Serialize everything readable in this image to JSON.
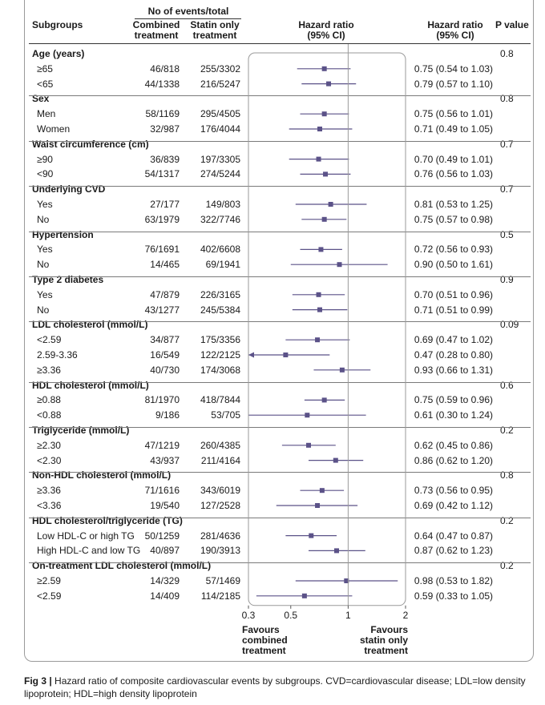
{
  "header": {
    "events_group": "No of events/total",
    "col_subgroups": "Subgroups",
    "col_combined": [
      "Combined",
      "treatment"
    ],
    "col_statin": [
      "Statin only",
      "treatment"
    ],
    "col_hr_plot": [
      "Hazard ratio",
      "(95% CI)"
    ],
    "col_hr_text": [
      "Hazard ratio",
      "(95% CI)"
    ],
    "col_p": "P value"
  },
  "chart_data": {
    "type": "forest",
    "x_scale": "log",
    "xlim": [
      0.3,
      2
    ],
    "x_ticks": [
      "0.3",
      "0.5",
      "1",
      "2"
    ],
    "x_tick_values": [
      0.3,
      0.5,
      1,
      2
    ],
    "reference_line": 1,
    "favours_left": [
      "Favours",
      "combined",
      "treatment"
    ],
    "favours_right": [
      "Favours",
      "statin only",
      "treatment"
    ],
    "groups": [
      {
        "title": "Age (years)",
        "p": "0.8",
        "rows": [
          {
            "label": "≥65",
            "combined": "46/818",
            "statin": "255/3302",
            "hr": 0.75,
            "lo": 0.54,
            "hi": 1.03,
            "text": "0.75 (0.54 to 1.03)"
          },
          {
            "label": "<65",
            "combined": "44/1338",
            "statin": "216/5247",
            "hr": 0.79,
            "lo": 0.57,
            "hi": 1.1,
            "text": "0.79 (0.57 to 1.10)"
          }
        ]
      },
      {
        "title": "Sex",
        "p": "0.8",
        "rows": [
          {
            "label": "Men",
            "combined": "58/1169",
            "statin": "295/4505",
            "hr": 0.75,
            "lo": 0.56,
            "hi": 1.01,
            "text": "0.75 (0.56 to 1.01)"
          },
          {
            "label": "Women",
            "combined": "32/987",
            "statin": "176/4044",
            "hr": 0.71,
            "lo": 0.49,
            "hi": 1.05,
            "text": "0.71 (0.49 to 1.05)"
          }
        ]
      },
      {
        "title": "Waist circumference (cm)",
        "p": "0.7",
        "rows": [
          {
            "label": "≥90",
            "combined": "36/839",
            "statin": "197/3305",
            "hr": 0.7,
            "lo": 0.49,
            "hi": 1.01,
            "text": "0.70 (0.49 to 1.01)"
          },
          {
            "label": "<90",
            "combined": "54/1317",
            "statin": "274/5244",
            "hr": 0.76,
            "lo": 0.56,
            "hi": 1.03,
            "text": "0.76 (0.56 to 1.03)"
          }
        ]
      },
      {
        "title": "Underlying CVD",
        "p": "0.7",
        "rows": [
          {
            "label": "Yes",
            "combined": "27/177",
            "statin": "149/803",
            "hr": 0.81,
            "lo": 0.53,
            "hi": 1.25,
            "text": "0.81 (0.53 to 1.25)"
          },
          {
            "label": "No",
            "combined": "63/1979",
            "statin": "322/7746",
            "hr": 0.75,
            "lo": 0.57,
            "hi": 0.98,
            "text": "0.75 (0.57 to 0.98)"
          }
        ]
      },
      {
        "title": "Hypertension",
        "p": "0.5",
        "rows": [
          {
            "label": "Yes",
            "combined": "76/1691",
            "statin": "402/6608",
            "hr": 0.72,
            "lo": 0.56,
            "hi": 0.93,
            "text": "0.72 (0.56 to 0.93)"
          },
          {
            "label": "No",
            "combined": "14/465",
            "statin": "69/1941",
            "hr": 0.9,
            "lo": 0.5,
            "hi": 1.61,
            "text": "0.90 (0.50 to 1.61)"
          }
        ]
      },
      {
        "title": "Type 2 diabetes",
        "p": "0.9",
        "rows": [
          {
            "label": "Yes",
            "combined": "47/879",
            "statin": "226/3165",
            "hr": 0.7,
            "lo": 0.51,
            "hi": 0.96,
            "text": "0.70 (0.51 to 0.96)"
          },
          {
            "label": "No",
            "combined": "43/1277",
            "statin": "245/5384",
            "hr": 0.71,
            "lo": 0.51,
            "hi": 0.99,
            "text": "0.71 (0.51 to 0.99)"
          }
        ]
      },
      {
        "title": "LDL cholesterol (mmol/L)",
        "p": "0.09",
        "rows": [
          {
            "label": "<2.59",
            "combined": "34/877",
            "statin": "175/3356",
            "hr": 0.69,
            "lo": 0.47,
            "hi": 1.02,
            "text": "0.69 (0.47 to 1.02)"
          },
          {
            "label": "2.59-3.36",
            "combined": "16/549",
            "statin": "122/2125",
            "hr": 0.47,
            "lo": 0.28,
            "hi": 0.8,
            "text": "0.47 (0.28 to 0.80)"
          },
          {
            "label": "≥3.36",
            "combined": "40/730",
            "statin": "174/3068",
            "hr": 0.93,
            "lo": 0.66,
            "hi": 1.31,
            "text": "0.93 (0.66 to 1.31)"
          }
        ]
      },
      {
        "title": "HDL cholesterol (mmol/L)",
        "p": "0.6",
        "rows": [
          {
            "label": "≥0.88",
            "combined": "81/1970",
            "statin": "418/7844",
            "hr": 0.75,
            "lo": 0.59,
            "hi": 0.96,
            "text": "0.75 (0.59 to 0.96)"
          },
          {
            "label": "<0.88",
            "combined": "9/186",
            "statin": "53/705",
            "hr": 0.61,
            "lo": 0.3,
            "hi": 1.24,
            "text": "0.61 (0.30 to 1.24)"
          }
        ]
      },
      {
        "title": "Triglyceride (mmol/L)",
        "p": "0.2",
        "rows": [
          {
            "label": "≥2.30",
            "combined": "47/1219",
            "statin": "260/4385",
            "hr": 0.62,
            "lo": 0.45,
            "hi": 0.86,
            "text": "0.62 (0.45 to 0.86)"
          },
          {
            "label": "<2.30",
            "combined": "43/937",
            "statin": "211/4164",
            "hr": 0.86,
            "lo": 0.62,
            "hi": 1.2,
            "text": "0.86 (0.62 to 1.20)"
          }
        ]
      },
      {
        "title": "Non-HDL cholesterol (mmol/L)",
        "p": "0.8",
        "rows": [
          {
            "label": "≥3.36",
            "combined": "71/1616",
            "statin": "343/6019",
            "hr": 0.73,
            "lo": 0.56,
            "hi": 0.95,
            "text": "0.73 (0.56 to 0.95)"
          },
          {
            "label": "<3.36",
            "combined": "19/540",
            "statin": "127/2528",
            "hr": 0.69,
            "lo": 0.42,
            "hi": 1.12,
            "text": "0.69 (0.42 to 1.12)"
          }
        ]
      },
      {
        "title": "HDL cholesterol/triglyceride (TG)",
        "p": "0.2",
        "rows": [
          {
            "label": "Low HDL-C or high TG",
            "combined": "50/1259",
            "statin": "281/4636",
            "hr": 0.64,
            "lo": 0.47,
            "hi": 0.87,
            "text": "0.64 (0.47 to 0.87)"
          },
          {
            "label": "High HDL-C and low TG",
            "combined": "40/897",
            "statin": "190/3913",
            "hr": 0.87,
            "lo": 0.62,
            "hi": 1.23,
            "text": "0.87 (0.62 to 1.23)"
          }
        ]
      },
      {
        "title": "On-treatment LDL cholesterol (mmol/L)",
        "p": "0.2",
        "rows": [
          {
            "label": "≥2.59",
            "combined": "14/329",
            "statin": "57/1469",
            "hr": 0.98,
            "lo": 0.53,
            "hi": 1.82,
            "text": "0.98 (0.53 to 1.82)"
          },
          {
            "label": "<2.59",
            "combined": "14/409",
            "statin": "114/2185",
            "hr": 0.59,
            "lo": 0.33,
            "hi": 1.05,
            "text": "0.59 (0.33 to 1.05)"
          }
        ]
      }
    ]
  },
  "caption": {
    "label": "Fig 3 | ",
    "text": "Hazard ratio of composite cardiovascular events by subgroups. CVD=cardiovascular disease; LDL=low density lipoprotein; HDL=high density lipoprotein"
  },
  "colors": {
    "marker": "#5b5288",
    "ci_line": "#5b5288",
    "ref_line": "#9a9a9a",
    "frame": "#9a9a9a",
    "rule": "#7a7a7a"
  }
}
